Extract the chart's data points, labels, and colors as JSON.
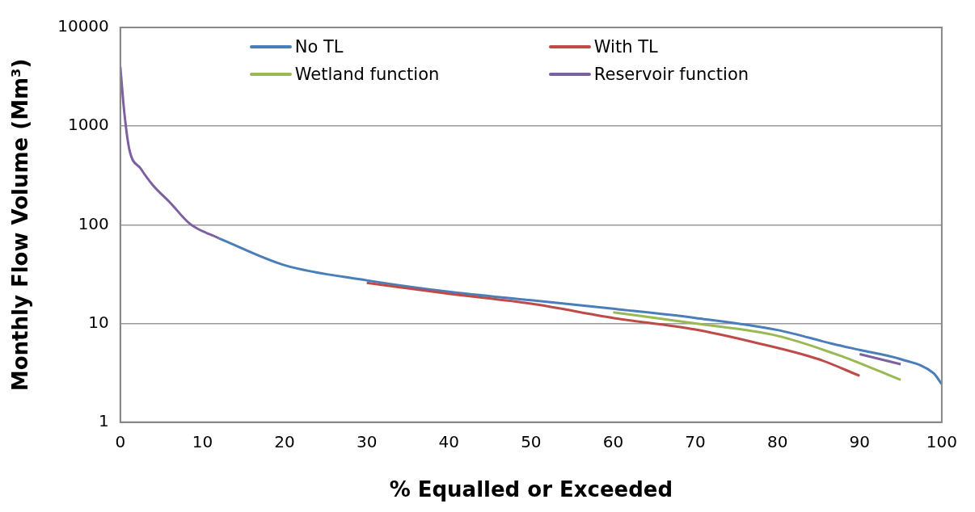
{
  "chart_data": {
    "type": "line",
    "xlabel": "% Equalled or Exceeded",
    "ylabel": "Monthly Flow Volume (Mm³)",
    "log": "y",
    "grid": "y",
    "legend": "top",
    "marker": "none",
    "line_style": "solid",
    "xlim": [
      0,
      100
    ],
    "xticks": [
      0,
      10,
      20,
      30,
      40,
      50,
      60,
      70,
      80,
      90,
      100
    ],
    "ylim": [
      1,
      10000
    ],
    "yticks": [
      1,
      10,
      100,
      1000,
      10000
    ],
    "series": [
      {
        "name": "No TL",
        "color": "#4a7ebb",
        "x": [
          12,
          20,
          30,
          40,
          50,
          60,
          70,
          80,
          86.8,
          90,
          95,
          99,
          100
        ],
        "values": [
          73,
          39,
          27.4,
          21,
          17.2,
          14.1,
          11.4,
          8.6,
          6.2,
          5.4,
          4.35,
          3.13,
          2.43
        ]
      },
      {
        "name": "With TL",
        "color": "#be4b48",
        "x": [
          30,
          40,
          50,
          60,
          70,
          77,
          85,
          90
        ],
        "values": [
          25.8,
          20,
          15.9,
          11.4,
          8.7,
          6.5,
          4.35,
          2.95
        ]
      },
      {
        "name": "Wetland function",
        "color": "#98b954",
        "x": [
          60,
          70,
          80,
          88,
          95
        ],
        "values": [
          13,
          10,
          7.5,
          4.6,
          2.68
        ]
      },
      {
        "name": "Reservoir function",
        "color": "#7d60a0",
        "x": [
          0,
          0.5,
          1.1,
          2.5,
          4,
          6,
          8.5,
          12,
          20,
          30,
          40,
          50,
          60,
          70,
          80,
          90,
          95
        ],
        "values": [
          4000,
          1340,
          580,
          370,
          250,
          170,
          102,
          73,
          null,
          null,
          null,
          null,
          null,
          null,
          null,
          4.9,
          3.87
        ]
      }
    ]
  }
}
